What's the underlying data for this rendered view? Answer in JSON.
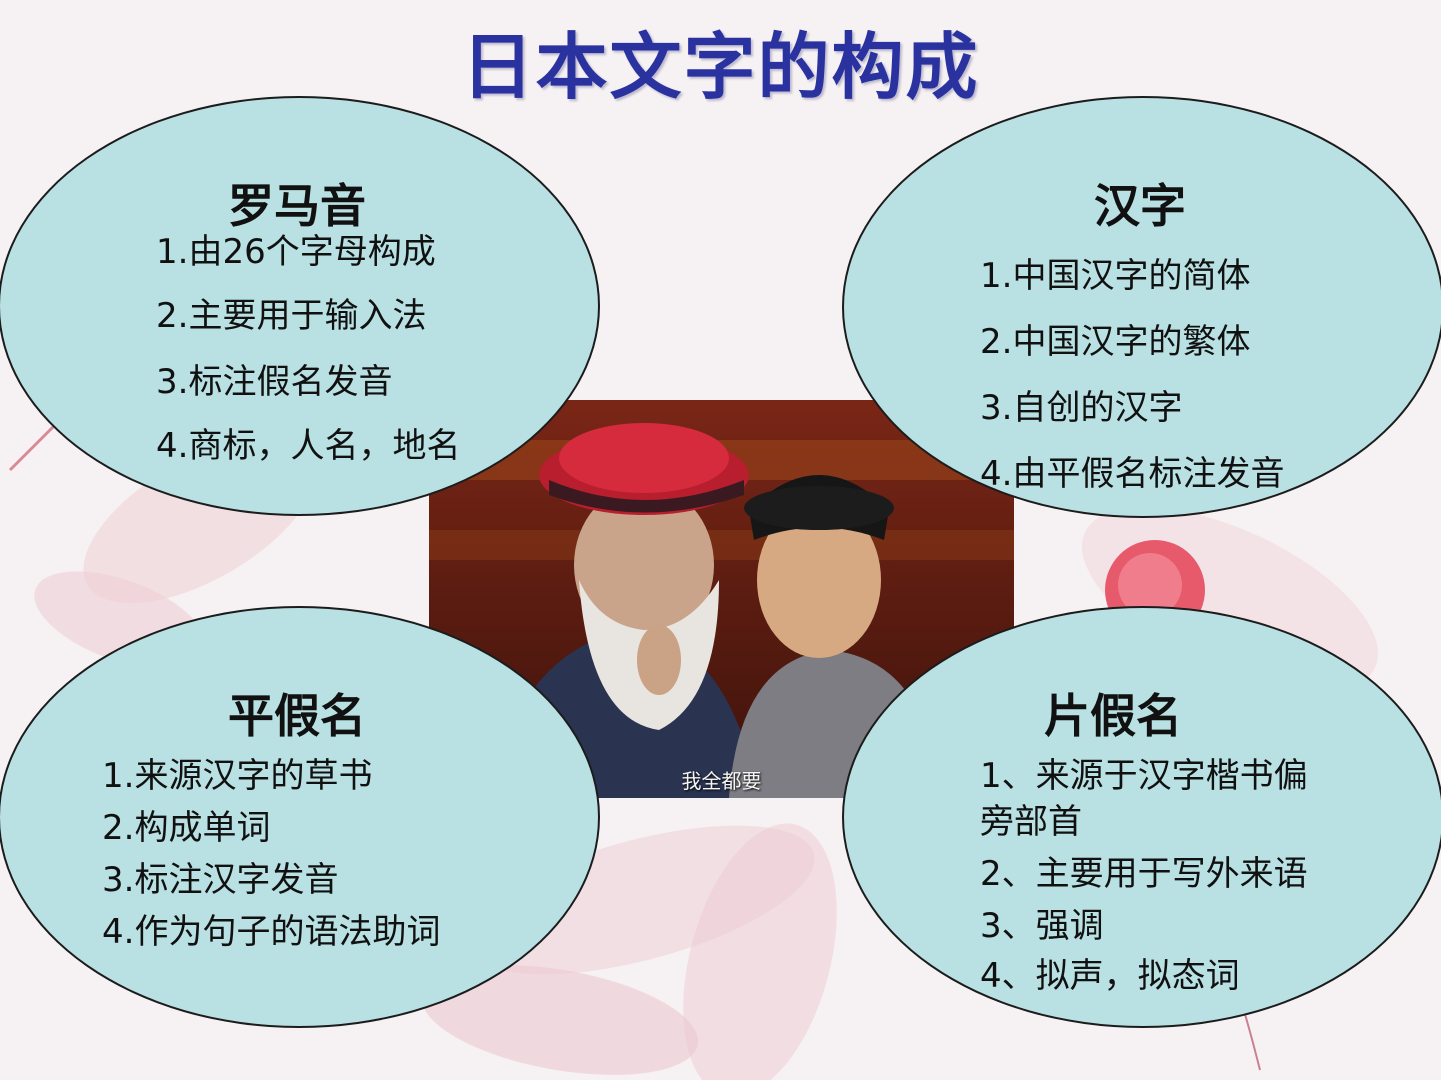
{
  "title": "日本文字的构成",
  "photo": {
    "caption": "我全都要"
  },
  "sections": {
    "romaji": {
      "heading": "罗马音",
      "items": [
        "1.由26个字母构成",
        "2.主要用于输入法",
        "3.标注假名发音",
        "4.商标，人名，地名"
      ]
    },
    "kanji": {
      "heading": "汉字",
      "items": [
        "1.中国汉字的简体",
        "2.中国汉字的繁体",
        "3.自创的汉字",
        "4.由平假名标注发音"
      ]
    },
    "hiragana": {
      "heading": "平假名",
      "items": [
        "1.来源汉字的草书",
        "2.构成单词",
        "3.标注汉字发音",
        "4.作为句子的语法助词"
      ]
    },
    "katakana": {
      "heading": "片假名",
      "items": [
        "1、来源于汉字楷书偏",
        " 旁部首",
        "2、主要用于写外来语",
        "3、强调",
        "4、拟声，拟态词"
      ]
    }
  },
  "colors": {
    "oval_fill": "#b9e0e2",
    "title": "#2a32a0"
  }
}
